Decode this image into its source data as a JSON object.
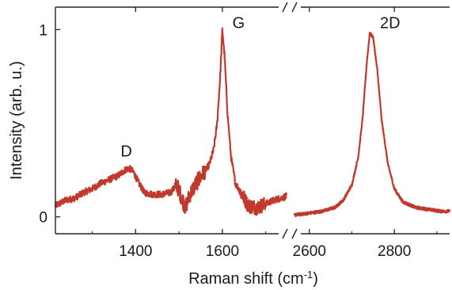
{
  "chart_data": {
    "type": "line",
    "xlabel": "Raman shift (cm",
    "xlabel_sup": "-1",
    "xlabel_end": ")",
    "ylabel": "Intensity (arb. u.)",
    "x_tick_labels": [
      "1400",
      "1600",
      "2600",
      "2800"
    ],
    "y_tick_labels": [
      "0",
      "1"
    ],
    "axis_break": true,
    "panels": [
      {
        "xlim": [
          1215,
          1748
        ],
        "ylim": [
          -0.09,
          1.12
        ]
      },
      {
        "xlim": [
          2565,
          2930
        ],
        "ylim": [
          -0.09,
          1.12
        ]
      }
    ],
    "annotations": [
      {
        "text": "D",
        "x": 1380,
        "y": 0.28
      },
      {
        "text": "G",
        "x": 1605,
        "y": 1.0
      },
      {
        "text": "2D",
        "x": 2740,
        "y": 1.0
      }
    ],
    "series": [
      {
        "color": "#c0392b",
        "x": [
          1215,
          1240,
          1260,
          1280,
          1300,
          1320,
          1340,
          1360,
          1375,
          1385,
          1395,
          1405,
          1420,
          1440,
          1460,
          1480,
          1495,
          1505,
          1515,
          1525,
          1540,
          1555,
          1570,
          1580,
          1588,
          1595,
          1600,
          1605,
          1612,
          1620,
          1630,
          1645,
          1660,
          1680,
          1700,
          1720,
          1748
        ],
        "y": [
          0.06,
          0.09,
          0.1,
          0.13,
          0.15,
          0.18,
          0.2,
          0.22,
          0.25,
          0.26,
          0.24,
          0.19,
          0.13,
          0.12,
          0.12,
          0.13,
          0.17,
          0.11,
          0.05,
          0.12,
          0.18,
          0.23,
          0.28,
          0.36,
          0.5,
          0.75,
          1.0,
          0.86,
          0.55,
          0.32,
          0.18,
          0.12,
          0.06,
          0.05,
          0.07,
          0.09,
          0.11
        ]
      },
      {
        "color": "#c0392b",
        "x": [
          2565,
          2600,
          2630,
          2660,
          2680,
          2700,
          2715,
          2725,
          2735,
          2742,
          2750,
          2760,
          2770,
          2785,
          2800,
          2820,
          2850,
          2880,
          2910,
          2930
        ],
        "y": [
          0.01,
          0.02,
          0.03,
          0.05,
          0.09,
          0.17,
          0.32,
          0.52,
          0.82,
          0.98,
          0.96,
          0.78,
          0.52,
          0.28,
          0.15,
          0.08,
          0.05,
          0.04,
          0.03,
          0.03
        ]
      }
    ]
  }
}
